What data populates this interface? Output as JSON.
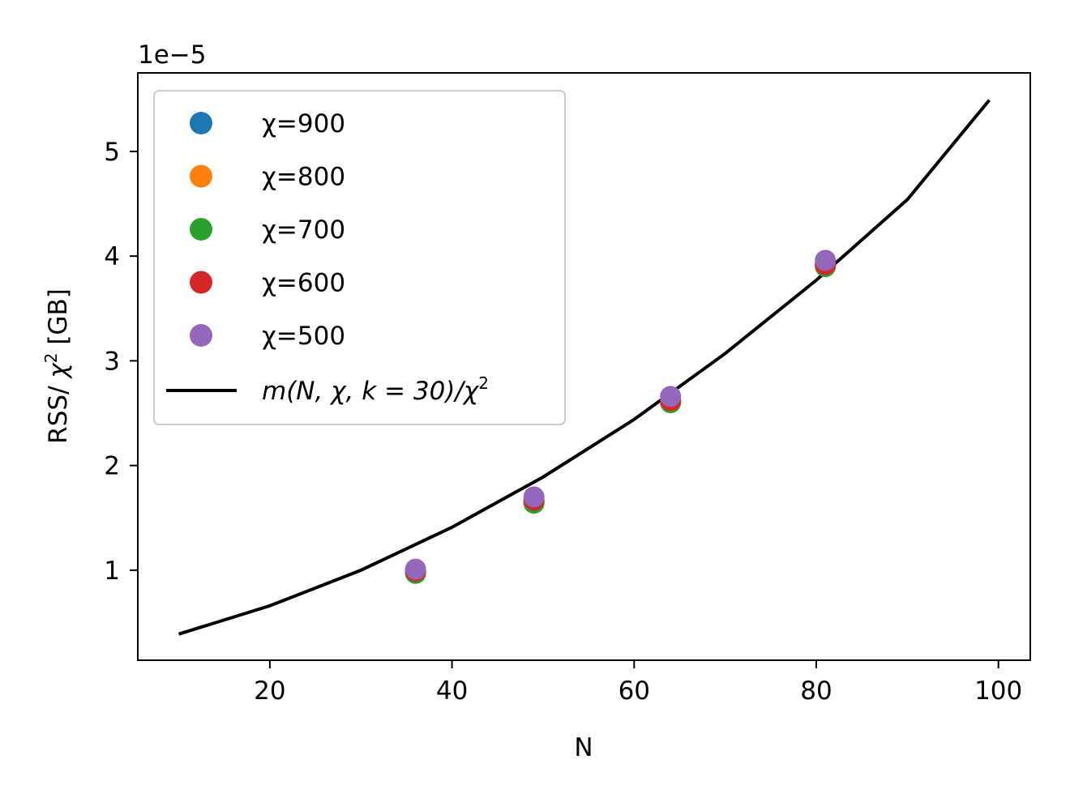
{
  "chart_data": {
    "type": "scatter",
    "xlabel": "N",
    "ylabel_prefix": "RSS/ ",
    "ylabel_symbol": "χ",
    "ylabel_superscript": "2",
    "ylabel_suffix": " [GB]",
    "offset_text": "1e−5",
    "x_ticks": [
      20,
      40,
      60,
      80,
      100
    ],
    "y_ticks": [
      1,
      2,
      3,
      4,
      5
    ],
    "xlim": [
      5.5,
      103.5
    ],
    "ylim": [
      0.14,
      5.75
    ],
    "y_multiplier": "1e-5",
    "grid": false,
    "legend_position": "upper left",
    "series": [
      {
        "name": "χ=900",
        "color": "#1f77b4",
        "x": [
          36,
          49,
          64,
          81
        ],
        "y": [
          0.98,
          1.65,
          2.61,
          3.92
        ]
      },
      {
        "name": "χ=800",
        "color": "#ff7f0e",
        "x": [
          36,
          49,
          64,
          81
        ],
        "y": [
          0.98,
          1.66,
          2.61,
          3.92
        ]
      },
      {
        "name": "χ=700",
        "color": "#2ca02c",
        "x": [
          36,
          49,
          64,
          81
        ],
        "y": [
          0.97,
          1.64,
          2.6,
          3.9
        ]
      },
      {
        "name": "χ=600",
        "color": "#d62728",
        "x": [
          36,
          49,
          64,
          81
        ],
        "y": [
          0.99,
          1.67,
          2.62,
          3.92
        ]
      },
      {
        "name": "χ=500",
        "color": "#9467bd",
        "x": [
          36,
          49,
          64,
          81
        ],
        "y": [
          1.01,
          1.7,
          2.66,
          3.96
        ]
      }
    ],
    "line": {
      "name": "m(N, χ, k = 30)/χ²",
      "color": "#000000",
      "x": [
        10,
        20,
        30,
        40,
        50,
        60,
        70,
        80,
        90,
        99
      ],
      "y": [
        0.39,
        0.66,
        1.0,
        1.41,
        1.89,
        2.44,
        3.07,
        3.77,
        4.54,
        5.49
      ]
    }
  },
  "legend": {
    "line_prefix": "m",
    "line_args": "(N, χ, k = 30)/χ",
    "line_sup": "2"
  }
}
